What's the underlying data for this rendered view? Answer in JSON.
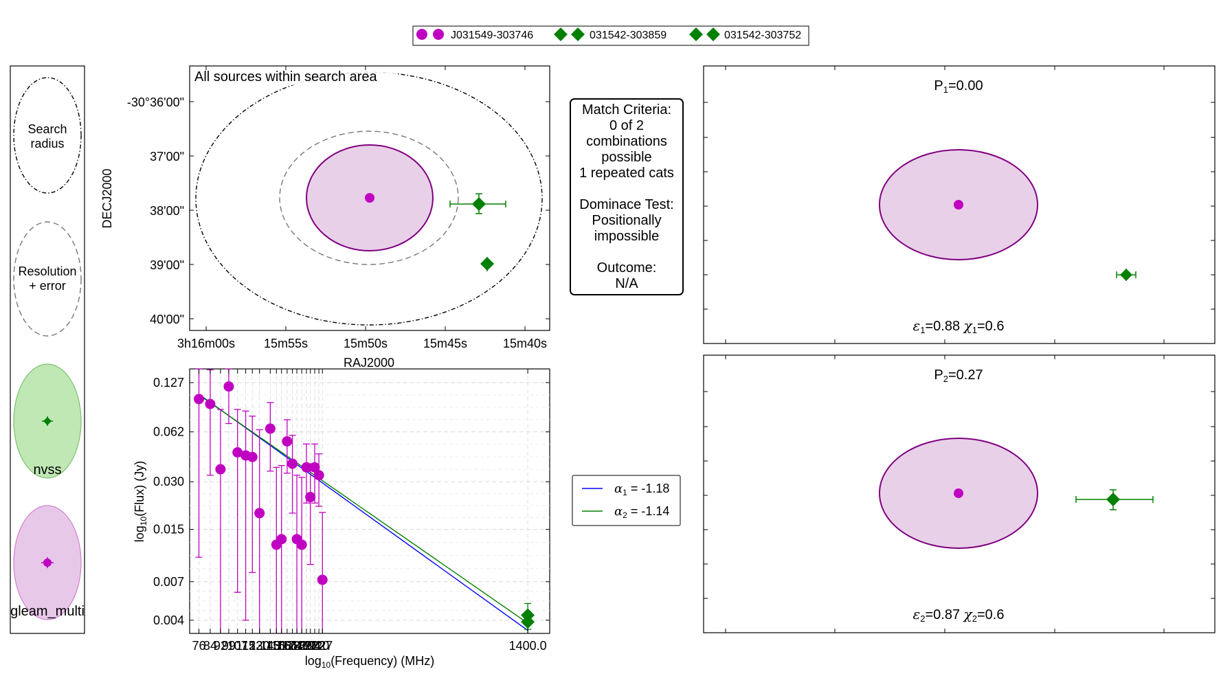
{
  "legend_top": [
    {
      "label": "J031549-303746",
      "color": "#c000c0",
      "marker": "circle"
    },
    {
      "label": "031542-303859",
      "color": "#008000",
      "marker": "diamond"
    },
    {
      "label": "031542-303752",
      "color": "#008000",
      "marker": "diamond"
    }
  ],
  "key_panel": {
    "search_label": [
      "Search",
      "radius"
    ],
    "resolution_label": [
      "Resolution",
      "+ error"
    ],
    "nvss_label": "nvss",
    "gleam_label": "gleam_multi",
    "nvss_color": "#bfe8b5",
    "gleam_color": "#e8c8e8"
  },
  "sky_plot": {
    "annotation": "All sources within search area",
    "xlabel": "RAJ2000",
    "ylabel": "DECJ2000",
    "xticks": [
      "3h16m00s",
      "15m55s",
      "15m50s",
      "15m45s",
      "15m40s"
    ],
    "yticks": [
      "-30°36'00\"",
      "37'00\"",
      "38'00\"",
      "39'00\"",
      "40'00\""
    ]
  },
  "criteria": {
    "lines": [
      "Match Criteria:",
      "0 of 2",
      "combinations",
      "possible",
      "1 repeated cats",
      "",
      "Dominace Test:",
      "Positionally",
      "impossible",
      "",
      "Outcome:",
      "N/A"
    ]
  },
  "chart_data": {
    "type": "scatter",
    "xlabel_main": "log",
    "xlabel_sub": "10",
    "xlabel_rest": "(Frequency) (MHz)",
    "ylabel_main": "log",
    "ylabel_sub": "10",
    "ylabel_rest": "(Flux) (Jy)",
    "yticks": [
      "0.127",
      "0.062",
      "0.030",
      "0.015",
      "0.007",
      "0.004"
    ],
    "xtick_labels": [
      "76",
      "84",
      "92",
      "99",
      "107",
      "115",
      "122",
      "130",
      "143",
      "151",
      "158",
      "166",
      "174",
      "181",
      "189",
      "197",
      "204",
      "212",
      "220",
      "227",
      "1400.0"
    ],
    "xlim": [
      70,
      1700
    ],
    "ylim": [
      0.0033,
      0.155
    ],
    "log_x": true,
    "log_y": true,
    "series": [
      {
        "name": "J031549-303746",
        "color": "#c000c0",
        "marker": "circle",
        "x": [
          76,
          84,
          92,
          99,
          107,
          115,
          122,
          130,
          143,
          151,
          158,
          166,
          174,
          181,
          189,
          197,
          204,
          212,
          220,
          227
        ],
        "y": [
          0.1,
          0.093,
          0.036,
          0.12,
          0.046,
          0.044,
          0.043,
          0.019,
          0.065,
          0.012,
          0.013,
          0.054,
          0.039,
          0.013,
          0.012,
          0.037,
          0.024,
          0.037,
          0.033,
          0.0072
        ],
        "err": [
          0.09,
          0.06,
          0.05,
          0.05,
          0.04,
          0.04,
          0.035,
          0.045,
          0.03,
          0.025,
          0.025,
          0.02,
          0.02,
          0.02,
          0.02,
          0.015,
          0.015,
          0.015,
          0.012,
          0.012
        ]
      },
      {
        "name": "031542-303859",
        "color": "#008000",
        "marker": "diamond",
        "x": [
          1400
        ],
        "y": [
          0.0043
        ],
        "err": [
          0.0008
        ]
      },
      {
        "name": "031542-303752",
        "color": "#008000",
        "marker": "diamond",
        "x": [
          1400
        ],
        "y": [
          0.0039
        ],
        "err": [
          0.0006
        ]
      }
    ],
    "fits": [
      {
        "alpha_label": "α",
        "alpha_sub": "1",
        "value_text": " = -1.18",
        "slope": -1.18,
        "anchor_y": 0.104,
        "color": "#0000ff"
      },
      {
        "alpha_label": "α",
        "alpha_sub": "2",
        "value_text": " = -1.14",
        "slope": -1.14,
        "anchor_y": 0.103,
        "color": "#008000"
      }
    ]
  },
  "combo_plots": [
    {
      "p_main": "P",
      "p_sub": "1",
      "p_value": "=0.00",
      "e_main": "ε",
      "e_sub": "1",
      "e_value": "=0.88",
      "chi_main": "χ",
      "chi_sub": "1",
      "chi_value": "=0.6"
    },
    {
      "p_main": "P",
      "p_sub": "2",
      "p_value": "=0.27",
      "e_main": "ε",
      "e_sub": "2",
      "e_value": "=0.87",
      "chi_main": "χ",
      "chi_sub": "2",
      "chi_value": "=0.6"
    }
  ],
  "colors": {
    "gleam": "#c000c0",
    "gleam_fill": "#e8d0e8",
    "gleam_edge": "#800080",
    "nvss": "#008000",
    "fit1": "#0000ff",
    "fit2": "#008000"
  }
}
